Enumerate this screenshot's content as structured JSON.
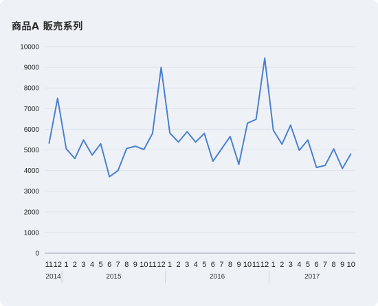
{
  "chart_data": {
    "type": "line",
    "title": "商品A 販売系列",
    "xlabel": "",
    "ylabel": "",
    "ylim": [
      0,
      10000
    ],
    "yticks": [
      0,
      1000,
      2000,
      3000,
      4000,
      5000,
      6000,
      7000,
      8000,
      9000,
      10000
    ],
    "grid": true,
    "colors": {
      "line": "#4a7fcf",
      "grid": "#dde3ea",
      "axis": "#9aa4b0"
    },
    "x": [
      "2014-11",
      "2014-12",
      "2015-01",
      "2015-02",
      "2015-03",
      "2015-04",
      "2015-05",
      "2015-06",
      "2015-07",
      "2015-08",
      "2015-09",
      "2015-10",
      "2015-11",
      "2015-12",
      "2016-01",
      "2016-02",
      "2016-03",
      "2016-04",
      "2016-05",
      "2016-06",
      "2016-07",
      "2016-08",
      "2016-09",
      "2016-10",
      "2016-11",
      "2016-12",
      "2017-01",
      "2017-02",
      "2017-03",
      "2017-04",
      "2017-05",
      "2017-06",
      "2017-07",
      "2017-08",
      "2017-09",
      "2017-10"
    ],
    "month_labels": [
      "11",
      "12",
      "1",
      "2",
      "3",
      "4",
      "5",
      "6",
      "7",
      "8",
      "9",
      "10",
      "11",
      "12",
      "1",
      "2",
      "3",
      "4",
      "5",
      "6",
      "7",
      "8",
      "9",
      "10",
      "11",
      "12",
      "1",
      "2",
      "3",
      "4",
      "5",
      "6",
      "7",
      "8",
      "9",
      "10"
    ],
    "year_groups": [
      {
        "label": "2014",
        "count": 2
      },
      {
        "label": "2015",
        "count": 12
      },
      {
        "label": "2016",
        "count": 12
      },
      {
        "label": "2017",
        "count": 10
      }
    ],
    "series": [
      {
        "values": [
          5300,
          7500,
          5050,
          4580,
          5480,
          4750,
          5300,
          3700,
          4000,
          5070,
          5180,
          5020,
          5800,
          9000,
          5820,
          5380,
          5880,
          5380,
          5800,
          4450,
          5050,
          5650,
          4300,
          6300,
          6480,
          9450,
          5950,
          5280,
          6200,
          4980,
          5480,
          4150,
          4250,
          5050,
          4100,
          4820
        ]
      }
    ]
  }
}
